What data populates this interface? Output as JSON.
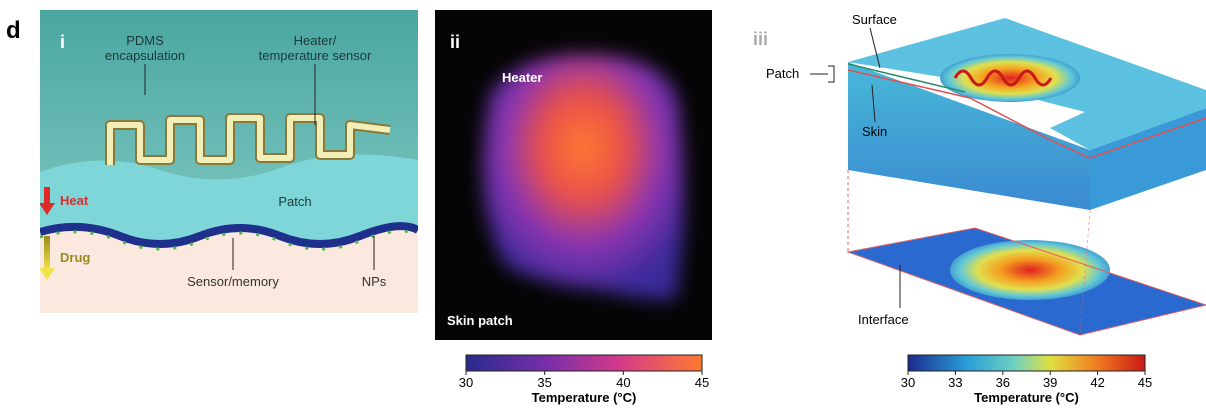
{
  "figure_label": "d",
  "panel_i": {
    "label": "i",
    "pdms": [
      "PDMS",
      "encapsulation"
    ],
    "heater": [
      "Heater/",
      "temperature sensor"
    ],
    "heat": "Heat",
    "patch": "Patch",
    "drug": "Drug",
    "sensor": "Sensor/memory",
    "nps": "NPs"
  },
  "panel_ii": {
    "label": "ii",
    "heater": "Heater",
    "skin_patch": "Skin patch",
    "colorbar": {
      "lim": [
        30,
        45
      ],
      "ticks": [
        30,
        35,
        40,
        45
      ],
      "title": "Temperature (°C)"
    }
  },
  "panel_iii": {
    "label": "iii",
    "surface": "Surface",
    "patch": "Patch",
    "skin": "Skin",
    "interface": "Interface",
    "colorbar": {
      "lim": [
        30,
        45
      ],
      "ticks": [
        30,
        33,
        36,
        39,
        42,
        45
      ],
      "title": "Temperature (°C)"
    }
  }
}
